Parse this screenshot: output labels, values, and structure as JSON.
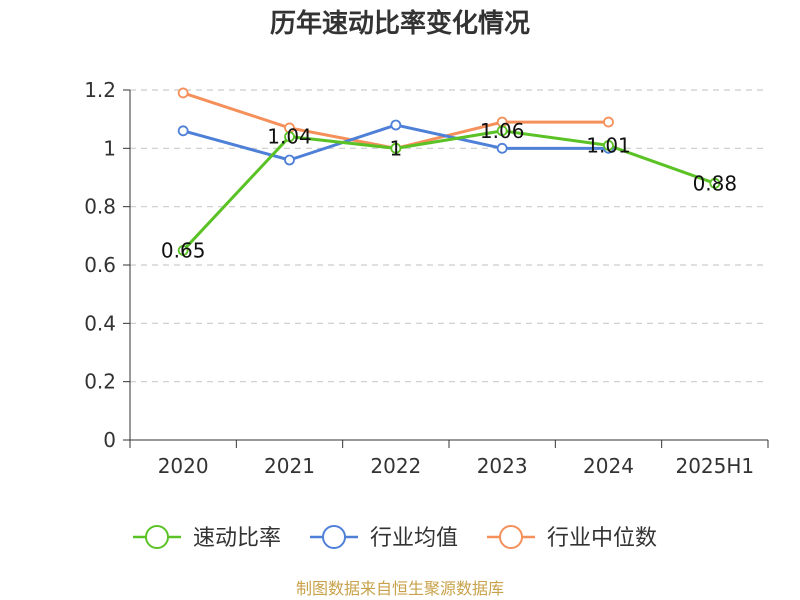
{
  "chart_data": {
    "type": "line",
    "title": "历年速动比率变化情况",
    "categories": [
      "2020",
      "2021",
      "2022",
      "2023",
      "2024",
      "2025H1"
    ],
    "ylim": [
      0,
      1.2
    ],
    "yticks": [
      "0",
      "0.2",
      "0.4",
      "0.6",
      "0.8",
      "1",
      "1.2"
    ],
    "grid": true,
    "legend_position": "bottom",
    "series": [
      {
        "name": "速动比率",
        "color": "#5bc226",
        "values": [
          0.65,
          1.04,
          1.0,
          1.06,
          1.01,
          0.88
        ],
        "labels": [
          "0.65",
          "1.04",
          "1",
          "1.06",
          "1.01",
          "0.88"
        ]
      },
      {
        "name": "行业均值",
        "color": "#4f80d8",
        "values": [
          1.06,
          0.96,
          1.08,
          1.0,
          1.0,
          null
        ]
      },
      {
        "name": "行业中位数",
        "color": "#f5905a",
        "values": [
          1.19,
          1.07,
          1.0,
          1.09,
          1.09,
          null
        ]
      }
    ],
    "source": "制图数据来自恒生聚源数据库"
  }
}
